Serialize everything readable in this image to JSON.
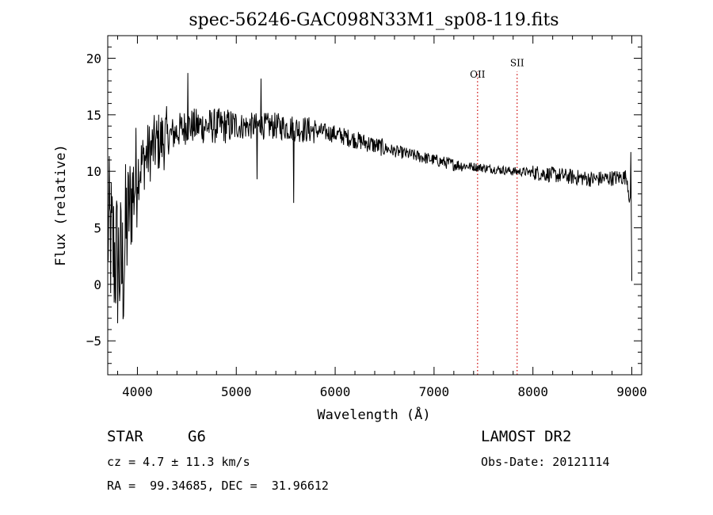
{
  "chart_data": {
    "type": "line",
    "title": "spec-56246-GAC098N33M1_sp08-119.fits",
    "xlabel": "Wavelength (Å)",
    "ylabel": "Flux (relative)",
    "xlim": [
      3700,
      9100
    ],
    "ylim": [
      -8,
      22
    ],
    "xticks": [
      4000,
      5000,
      6000,
      7000,
      8000,
      9000
    ],
    "yticks": [
      -5,
      0,
      5,
      10,
      15,
      20
    ],
    "grid": false,
    "anchors": [
      [
        3700,
        5
      ],
      [
        3750,
        3
      ],
      [
        3800,
        2
      ],
      [
        3850,
        1
      ],
      [
        3900,
        6
      ],
      [
        3950,
        8
      ],
      [
        4000,
        10
      ],
      [
        4100,
        11.5
      ],
      [
        4200,
        12.5
      ],
      [
        4300,
        13
      ],
      [
        4400,
        13.5
      ],
      [
        4500,
        14
      ],
      [
        4600,
        14
      ],
      [
        4800,
        14
      ],
      [
        5000,
        14
      ],
      [
        5200,
        14
      ],
      [
        5400,
        14
      ],
      [
        5600,
        13.8
      ],
      [
        5800,
        13.6
      ],
      [
        6000,
        13.3
      ],
      [
        6200,
        12.8
      ],
      [
        6400,
        12.3
      ],
      [
        6600,
        11.8
      ],
      [
        6800,
        11.4
      ],
      [
        7000,
        11
      ],
      [
        7200,
        10.6
      ],
      [
        7400,
        10.4
      ],
      [
        7600,
        10.2
      ],
      [
        7800,
        10
      ],
      [
        8000,
        9.9
      ],
      [
        8200,
        9.7
      ],
      [
        8400,
        9.5
      ],
      [
        8600,
        9.3
      ],
      [
        8800,
        9.4
      ],
      [
        8950,
        9.5
      ],
      [
        9000,
        6
      ]
    ],
    "features": [
      {
        "x": 4510,
        "y": 18.7
      },
      {
        "x": 5210,
        "y": 9.3
      },
      {
        "x": 5250,
        "y": 18.2
      },
      {
        "x": 5580,
        "y": 7.2
      },
      {
        "x": 8990,
        "y": 11.7
      },
      {
        "x": 9000,
        "y": 0.3
      }
    ],
    "spectral_lines": [
      {
        "name": "OII",
        "x": 7440,
        "color": "#cc0000"
      },
      {
        "name": "SII",
        "x": 7840,
        "color": "#cc0000"
      }
    ]
  },
  "info": {
    "object_class": "STAR",
    "subclass": "G6",
    "survey": "LAMOST DR2",
    "cz": "cz = 4.7 ± 11.3 km/s",
    "obs_date": "Obs-Date: 20121114",
    "coords": "RA =  99.34685, DEC =  31.96612"
  }
}
